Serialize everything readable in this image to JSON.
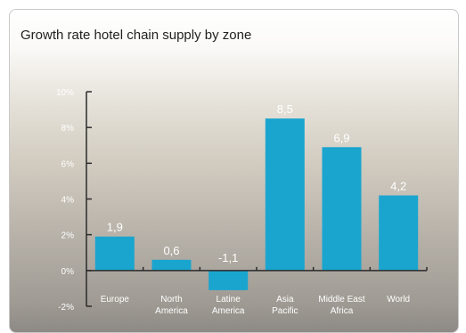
{
  "chart_data": {
    "type": "bar",
    "title": "Growth rate hotel chain supply by zone",
    "categories": [
      [
        "Europe"
      ],
      [
        "North",
        "America"
      ],
      [
        "Latine",
        "America"
      ],
      [
        "Asia",
        "Pacific"
      ],
      [
        "Middle East",
        "Africa"
      ],
      [
        "World"
      ]
    ],
    "values": [
      1.9,
      0.6,
      -1.1,
      8.5,
      6.9,
      4.2
    ],
    "data_labels": [
      "1,9",
      "0,6",
      "-1,1",
      "8,5",
      "6,9",
      "4,2"
    ],
    "y_ticks": [
      -2,
      0,
      2,
      4,
      6,
      8,
      10
    ],
    "y_tick_labels": [
      "-2%",
      "0%",
      "2%",
      "4%",
      "6%",
      "8%",
      "10%"
    ],
    "ylim": [
      -2,
      10
    ],
    "xlabel": "",
    "ylabel": "",
    "grid": false,
    "bar_color": "#1aa5cf",
    "axis_color": "#2b2b2b",
    "label_color": "#ffffff"
  }
}
